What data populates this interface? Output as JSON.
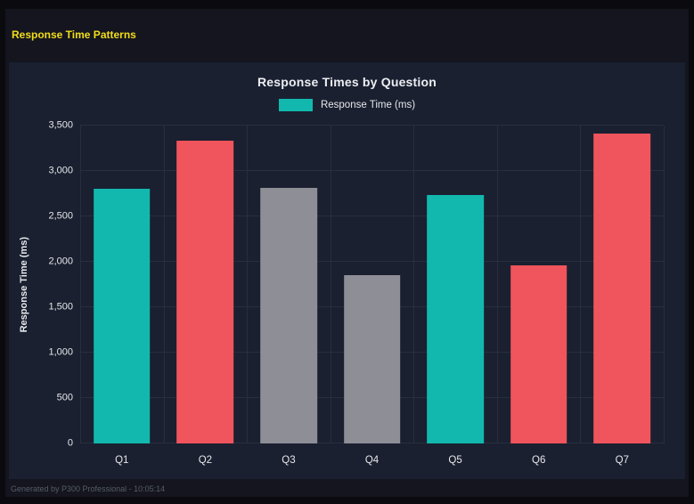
{
  "page": {
    "title": "Response Time Patterns"
  },
  "footer": {
    "text": "Generated by P300 Professional - 10:05:14"
  },
  "chart_data": {
    "type": "bar",
    "title": "Response Times by Question",
    "legend": {
      "label": "Response Time (ms)",
      "color": "#12b8ae",
      "position": "top"
    },
    "categories": [
      "Q1",
      "Q2",
      "Q3",
      "Q4",
      "Q5",
      "Q6",
      "Q7"
    ],
    "values": [
      2800,
      3330,
      2810,
      1850,
      2740,
      1960,
      3410
    ],
    "bar_color_keys": [
      "teal",
      "red",
      "gray",
      "gray",
      "teal",
      "red",
      "red"
    ],
    "palette": {
      "teal": "#12b8ae",
      "red": "#f0545c",
      "gray": "#8e8e96"
    },
    "xlabel": "",
    "ylabel": "Response Time (ms)",
    "ylim": [
      0,
      3500
    ],
    "ytick_step": 500,
    "ytick_labels": [
      "0",
      "500",
      "1,000",
      "1,500",
      "2,000",
      "2,500",
      "3,000",
      "3,500"
    ],
    "grid": true
  }
}
